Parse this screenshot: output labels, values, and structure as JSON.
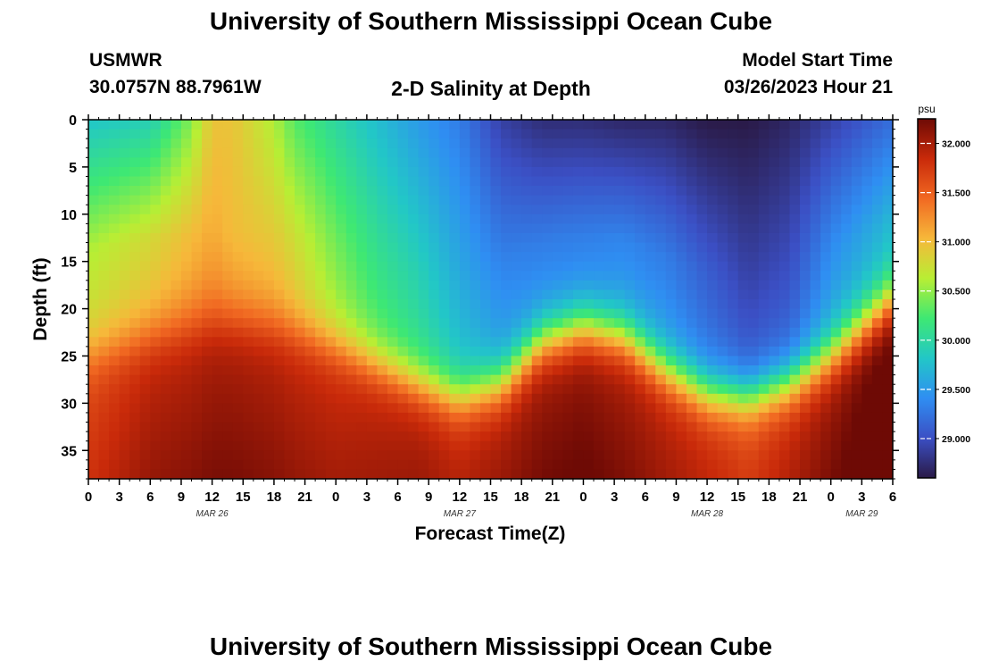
{
  "page": {
    "title_top": "University of Southern Mississippi Ocean Cube",
    "title_bottom": "University of Southern Mississippi Ocean Cube",
    "station_id": "USMWR",
    "station_coords": "30.0757N  88.7961W",
    "plot_name": "2-D Salinity at Depth",
    "model_start_label": "Model Start Time",
    "model_start_value": "03/26/2023 Hour 21"
  },
  "chart_data": {
    "type": "heatmap",
    "title": "2-D Salinity at Depth",
    "xlabel": "Forecast Time(Z)",
    "ylabel": "Depth (ft)",
    "x_ticks": [
      "0",
      "3",
      "6",
      "9",
      "12",
      "15",
      "18",
      "21",
      "0",
      "3",
      "6",
      "9",
      "12",
      "15",
      "18",
      "21",
      "0",
      "3",
      "6",
      "9",
      "12",
      "15",
      "18",
      "21",
      "0",
      "3",
      "6"
    ],
    "day_labels": [
      {
        "label": "MAR 26",
        "hour": 12
      },
      {
        "label": "MAR 27",
        "hour": 36
      },
      {
        "label": "MAR 28",
        "hour": 60
      },
      {
        "label": "MAR 29",
        "hour": 75
      }
    ],
    "xlim": [
      0,
      78
    ],
    "y_ticks": [
      "0",
      "5",
      "10",
      "15",
      "20",
      "25",
      "30",
      "35"
    ],
    "ylim": [
      0,
      38
    ],
    "y_inverted": true,
    "colorbar": {
      "unit": "psu",
      "ticks": [
        "29.000",
        "29.500",
        "30.000",
        "30.500",
        "31.000",
        "31.500",
        "32.000"
      ],
      "range": [
        28.6,
        32.25
      ],
      "colors": [
        "#2a1a47",
        "#3b4fc4",
        "#2f8ef2",
        "#22c7c7",
        "#3ee873",
        "#b8ee34",
        "#f6b83a",
        "#f16922",
        "#c92a0a",
        "#6e0a05"
      ]
    },
    "field": {
      "hours": [
        0,
        6,
        10,
        12,
        14,
        18,
        20,
        24,
        28,
        32,
        36,
        40,
        44,
        48,
        52,
        56,
        60,
        64,
        68,
        72,
        76,
        78
      ],
      "surface": [
        29.8,
        29.9,
        30.45,
        30.95,
        30.95,
        30.6,
        30.3,
        30.0,
        29.75,
        29.5,
        29.3,
        28.9,
        28.75,
        28.75,
        28.7,
        28.7,
        28.6,
        28.6,
        28.7,
        28.9,
        29.1,
        29.2
      ],
      "mid": [
        30.6,
        30.8,
        31.0,
        31.1,
        31.0,
        30.9,
        30.75,
        30.4,
        30.1,
        29.9,
        29.6,
        29.35,
        29.3,
        29.3,
        29.35,
        29.3,
        29.1,
        28.9,
        29.0,
        29.4,
        29.6,
        29.7
      ],
      "halocline_depth": [
        25,
        23,
        22,
        21.5,
        21.5,
        22,
        22.5,
        24,
        26,
        28,
        29.5,
        28,
        23.5,
        22,
        23,
        26.5,
        29,
        29.5,
        28,
        25,
        21,
        19
      ],
      "deep": [
        31.6,
        31.85,
        31.9,
        31.95,
        31.95,
        31.9,
        31.85,
        31.8,
        31.85,
        31.9,
        31.8,
        31.9,
        32.0,
        32.05,
        31.95,
        31.85,
        31.75,
        31.6,
        31.8,
        32.0,
        32.2,
        32.25
      ]
    }
  }
}
